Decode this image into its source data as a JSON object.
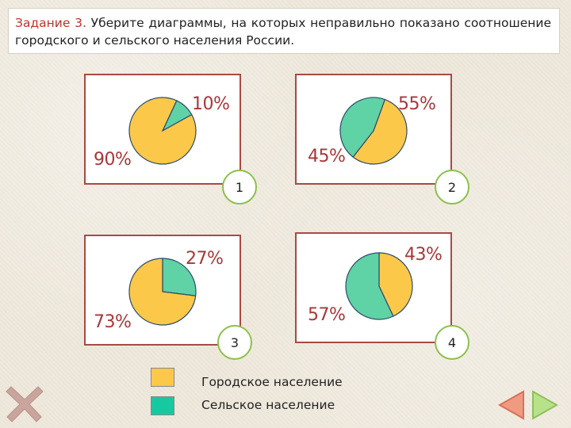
{
  "task": {
    "prefix": "Задание 3.",
    "text": " Уберите  диаграммы, на которых неправильно показано соотношение городского и сельского населения России."
  },
  "colors": {
    "urban": "#fcc84a",
    "rural": "#5fd2a6",
    "accent_red": "#a63838",
    "badge_border": "#8cc04a"
  },
  "chart_data": [
    {
      "type": "pie",
      "id": "1",
      "series": [
        {
          "name": "Сельское население",
          "value": 10
        },
        {
          "name": "Городское население",
          "value": 90
        }
      ],
      "labels": [
        "10%",
        "90%"
      ]
    },
    {
      "type": "pie",
      "id": "2",
      "series": [
        {
          "name": "Городское население",
          "value": 55
        },
        {
          "name": "Сельское население",
          "value": 45
        }
      ],
      "labels": [
        "55%",
        "45%"
      ]
    },
    {
      "type": "pie",
      "id": "3",
      "series": [
        {
          "name": "Сельское население",
          "value": 27
        },
        {
          "name": "Городское население",
          "value": 73
        }
      ],
      "labels": [
        "27%",
        "73%"
      ]
    },
    {
      "type": "pie",
      "id": "4",
      "series": [
        {
          "name": "Городское население",
          "value": 43
        },
        {
          "name": "Сельское население",
          "value": 57
        }
      ],
      "labels": [
        "43%",
        "57%"
      ]
    }
  ],
  "badges": [
    "1",
    "2",
    "3",
    "4"
  ],
  "legend": {
    "urban_label": "Городское население",
    "rural_label": "Сельское население"
  },
  "icons": {
    "remove": "remove-x-icon",
    "prev": "arrow-left-icon",
    "next": "arrow-right-icon"
  }
}
